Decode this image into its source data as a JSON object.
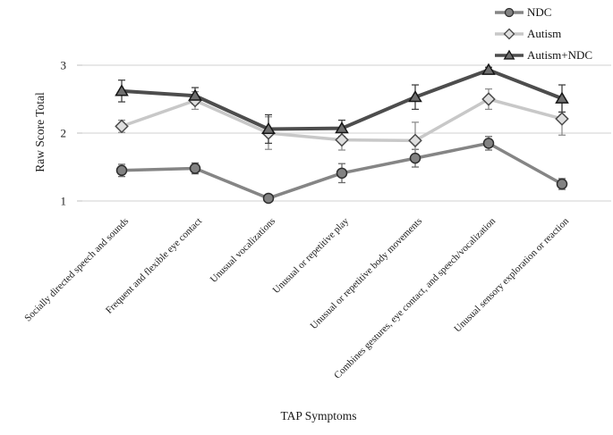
{
  "figure": {
    "background": "#ffffff",
    "text_color": "#1a1a1a",
    "gridline_color": "#d9d9d9"
  },
  "chart_data": {
    "type": "line",
    "title": "",
    "xlabel": "TAP Symptoms",
    "ylabel": "Raw Score Total",
    "ylim": [
      1,
      3
    ],
    "yticks": [
      1,
      2,
      3
    ],
    "grid": "horizontal",
    "legend_position": "top-right",
    "categories": [
      "Socially directed speech and sounds",
      "Frequent and flexible eye contact",
      "Unusual vocalizations",
      "Unusual or repetitive play",
      "Unusual or repetitive body movements",
      "Combines gestures, eye contact, and speech/vocalization",
      "Unusual sensory exploration or reaction"
    ],
    "series": [
      {
        "name": "NDC",
        "marker": "circle",
        "values": [
          1.45,
          1.48,
          1.04,
          1.41,
          1.63,
          1.85,
          1.25
        ],
        "errors": [
          0.09,
          0.08,
          0.05,
          0.14,
          0.13,
          0.1,
          0.08
        ],
        "line_color": "#858585",
        "marker_fill": "#828282",
        "marker_stroke": "#2e2e2e",
        "error_color": "#6a6a6a"
      },
      {
        "name": "Autism",
        "marker": "diamond",
        "values": [
          2.1,
          2.48,
          2.0,
          1.9,
          1.89,
          2.5,
          2.21
        ],
        "errors": [
          0.09,
          0.13,
          0.24,
          0.15,
          0.27,
          0.15,
          0.24
        ],
        "line_color": "#c8c8c8",
        "marker_fill": "#dedede",
        "marker_stroke": "#4a4a4a",
        "error_color": "#8f8f8f"
      },
      {
        "name": "Autism+NDC",
        "marker": "triangle",
        "values": [
          2.62,
          2.55,
          2.06,
          2.07,
          2.53,
          2.93,
          2.51
        ],
        "errors": [
          0.16,
          0.12,
          0.21,
          0.12,
          0.18,
          0.04,
          0.2
        ],
        "line_color": "#4d4d4d",
        "marker_fill": "#6f6f6f",
        "marker_stroke": "#161616",
        "error_color": "#424242"
      }
    ]
  }
}
